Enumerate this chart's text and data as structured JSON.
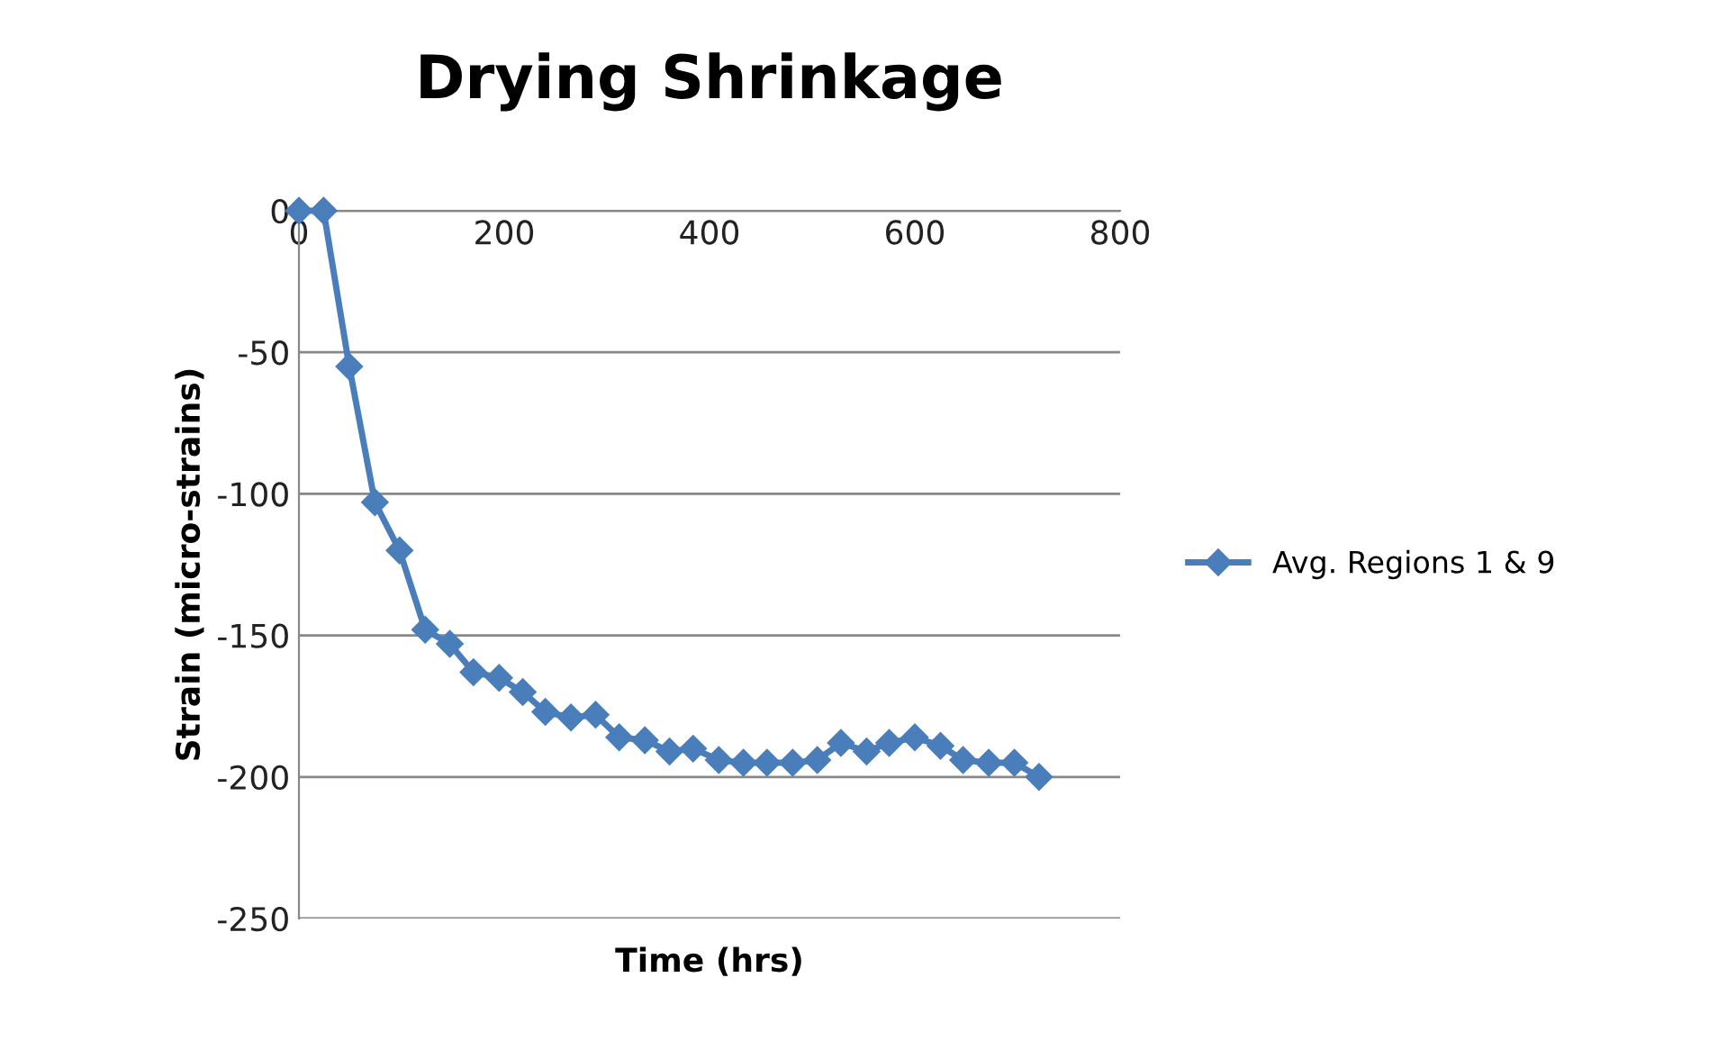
{
  "chart_data": {
    "type": "line",
    "title": "Drying Shrinkage",
    "xlabel": "Time (hrs)",
    "ylabel": "Strain (micro-strains)",
    "x": [
      0,
      24,
      49,
      74,
      98,
      123,
      147,
      170,
      195,
      218,
      240,
      265,
      289,
      312,
      337,
      361,
      384,
      409,
      433,
      456,
      481,
      505,
      528,
      553,
      575,
      600,
      625,
      647,
      672,
      697,
      721
    ],
    "series": [
      {
        "name": "Avg. Regions 1 & 9",
        "color": "#4a7ebb",
        "values": [
          0,
          0,
          -55,
          -103,
          -120,
          -148,
          -153,
          -163,
          -165,
          -170,
          -177,
          -179,
          -178,
          -186,
          -187,
          -191,
          -190,
          -194,
          -195,
          -195,
          -195,
          -194,
          -188,
          -191,
          -188,
          -186,
          -189,
          -194,
          -195,
          -195,
          -200
        ]
      }
    ],
    "xlim": [
      0,
      800
    ],
    "xticks": [
      0,
      200,
      400,
      600,
      800
    ],
    "ylim": [
      -250,
      0
    ],
    "yticks": [
      -250,
      -200,
      -150,
      -100,
      -50,
      0
    ],
    "grid": "y",
    "legend": "right",
    "marker": "diamond",
    "line_style": "solid"
  }
}
